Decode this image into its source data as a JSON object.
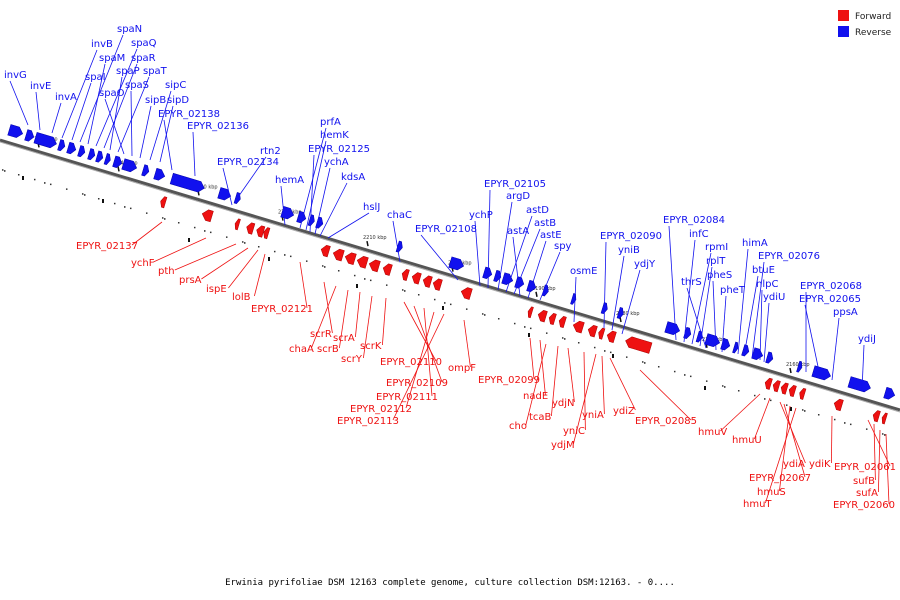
{
  "caption": "Erwinia pyrifoliae DSM 12163 complete genome, culture collection DSM:12163. - 0....",
  "legend": [
    {
      "label": "Forward",
      "color": "#ee1111"
    },
    {
      "label": "Reverse",
      "color": "#1111ee"
    }
  ],
  "colors": {
    "forward": "#ee1111",
    "reverse": "#1111ee",
    "backbone": "#555555"
  },
  "ticks": [
    "2250 kbp",
    "2240 kbp",
    "2230 kbp",
    "2220 kbp",
    "2210 kbp",
    "2200 kbp",
    "2190 kbp",
    "2180 kbp",
    "2170 kbp",
    "2160 kbp"
  ],
  "reverse_labels": [
    "invG",
    "invE",
    "invA",
    "invB",
    "spaI",
    "spaN",
    "spaM",
    "spaQ",
    "spaR",
    "spaP",
    "spaT",
    "spaO",
    "spaS",
    "sipB",
    "sipC",
    "sipD",
    "EPYR_02138",
    "EPYR_02136",
    "rtn2",
    "EPYR_02134",
    "hemA",
    "prfA",
    "hemK",
    "EPYR_02125",
    "ychA",
    "kdsA",
    "hslJ",
    "chaC",
    "EPYR_02108",
    "ychP",
    "EPYR_02105",
    "argD",
    "astD",
    "astB",
    "astA",
    "astE",
    "spy",
    "osmE",
    "EPYR_02090",
    "yniB",
    "ydjY",
    "EPYR_02084",
    "infC",
    "rpmI",
    "rplT",
    "thrS",
    "pheS",
    "pheT",
    "himA",
    "btuE",
    "EPYR_02076",
    "nlpC",
    "ydiU",
    "EPYR_02068",
    "EPYR_02065",
    "ppsA",
    "ydiJ"
  ],
  "forward_labels": [
    "EPYR_02137",
    "ychF",
    "pth",
    "prsA",
    "ispE",
    "lolB",
    "EPYR_02121",
    "scrR",
    "chaA",
    "scrB",
    "scrA",
    "scrY",
    "scrK",
    "EPYR_02110",
    "EPYR_02109",
    "EPYR_02111",
    "EPYR_02112",
    "EPYR_02113",
    "ompF",
    "EPYR_02099",
    "nadE",
    "cho",
    "tcaB",
    "ydjN",
    "yniC",
    "ydjM",
    "yniA",
    "ydiZ",
    "EPYR_02085",
    "hmuV",
    "hmuU",
    "ydiA",
    "EPYR_02067",
    "hmuS",
    "hmuT",
    "ydiK",
    "EPYR_02061",
    "sufB",
    "sufA",
    "EPYR_02060"
  ]
}
